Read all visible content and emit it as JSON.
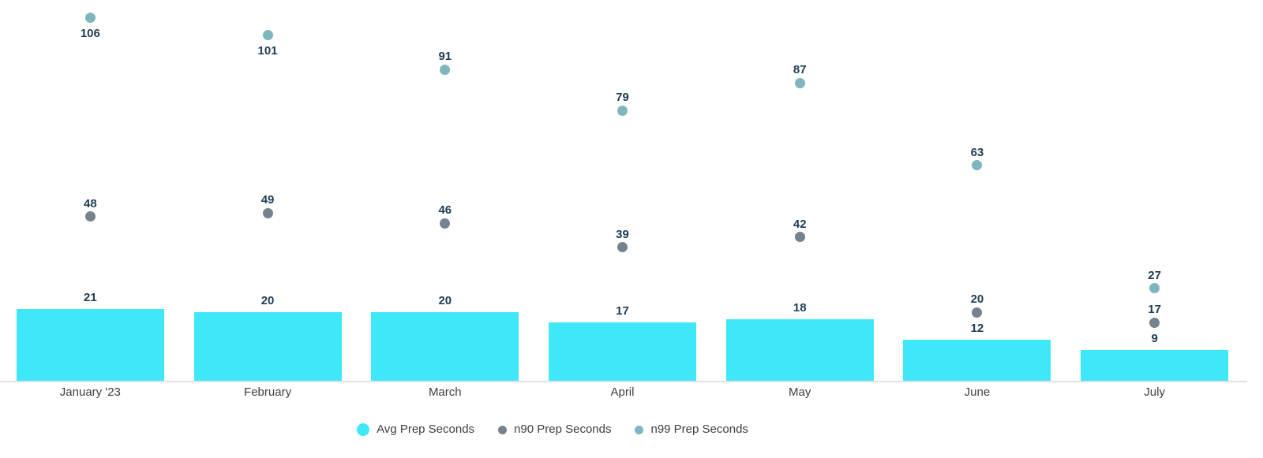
{
  "chart_data": {
    "type": "bar",
    "subtype": "combo-bar-scatter",
    "categories": [
      "January '23",
      "February",
      "March",
      "April",
      "May",
      "June",
      "July"
    ],
    "series": [
      {
        "name": "Avg Prep Seconds",
        "mark": "bar",
        "color": "#3ee8f9",
        "values": [
          21,
          20,
          20,
          17,
          18,
          12,
          9
        ]
      },
      {
        "name": "n90 Prep Seconds",
        "mark": "scatter",
        "color": "#76828e",
        "values": [
          48,
          49,
          46,
          39,
          42,
          20,
          17
        ]
      },
      {
        "name": "n99 Prep Seconds",
        "mark": "scatter",
        "color": "#7db6be",
        "values": [
          106,
          101,
          91,
          79,
          87,
          63,
          27
        ]
      }
    ],
    "title": "",
    "xlabel": "",
    "ylabel": "",
    "ylim": [
      0,
      111
    ],
    "grid": false,
    "y_axis_visible": false,
    "data_labels": true,
    "legend_position": "bottom"
  },
  "colors": {
    "bar_fill": "#3ee8f9",
    "n90_dot": "#76828e",
    "n99_dot": "#7db6be",
    "value_label": "#1d3c53",
    "axis_label": "#3c4043",
    "legend_text": "#3c4043",
    "axis_line": "#e1e1e8",
    "background": "#ffffff"
  }
}
